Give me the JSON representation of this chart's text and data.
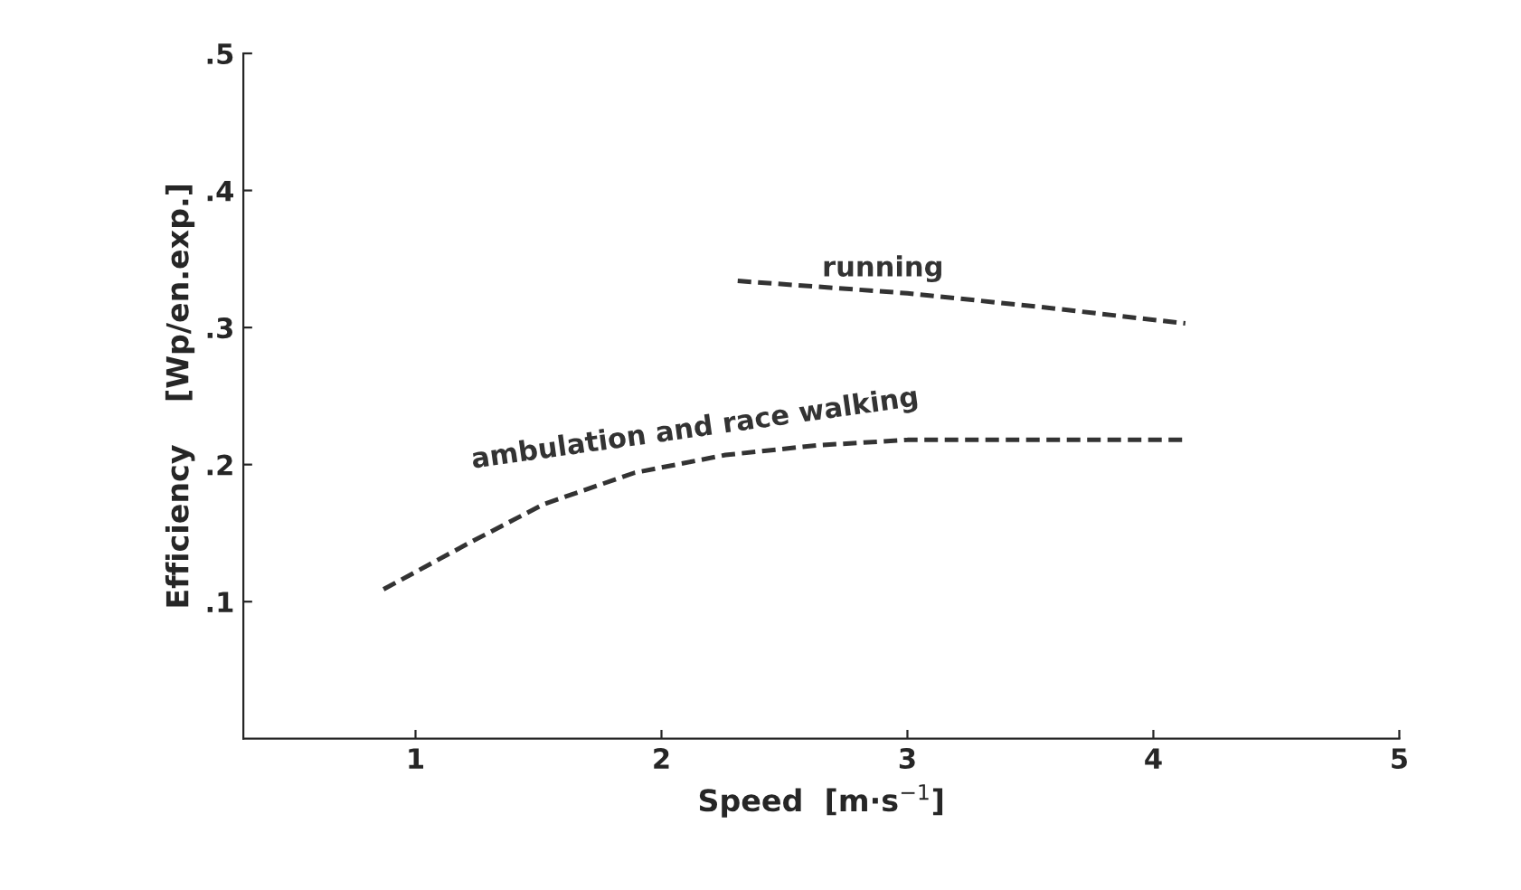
{
  "chart_data": {
    "type": "line",
    "xlabel": "Speed  [m·s$^{−1}$]",
    "ylabel": "Efficiency    [Wp/en.exp.]",
    "xlim": [
      0.3,
      5
    ],
    "xticks": [
      1,
      2,
      3,
      4,
      5
    ],
    "ylim": [
      0,
      0.5
    ],
    "yticks": [
      {
        "value": 0.1,
        "label": ".1"
      },
      {
        "value": 0.2,
        "label": ".2"
      },
      {
        "value": 0.3,
        "label": ".3"
      },
      {
        "value": 0.4,
        "label": ".4"
      },
      {
        "value": 0.5,
        "label": ".5"
      }
    ],
    "grid": false,
    "legend": false,
    "line_style": "dashed",
    "marker": "none",
    "series": [
      {
        "name": "running",
        "color": "#333333",
        "x": [
          2.31,
          3.0,
          3.54,
          4.13
        ],
        "values": [
          0.334,
          0.325,
          0.315,
          0.303
        ]
      },
      {
        "name": "ambulation and race walking",
        "color": "#333333",
        "x": [
          0.87,
          1.22,
          1.52,
          1.89,
          2.26,
          2.63,
          3.0,
          4.13
        ],
        "values": [
          0.109,
          0.143,
          0.171,
          0.194,
          0.207,
          0.214,
          0.218,
          0.218
        ]
      }
    ]
  }
}
